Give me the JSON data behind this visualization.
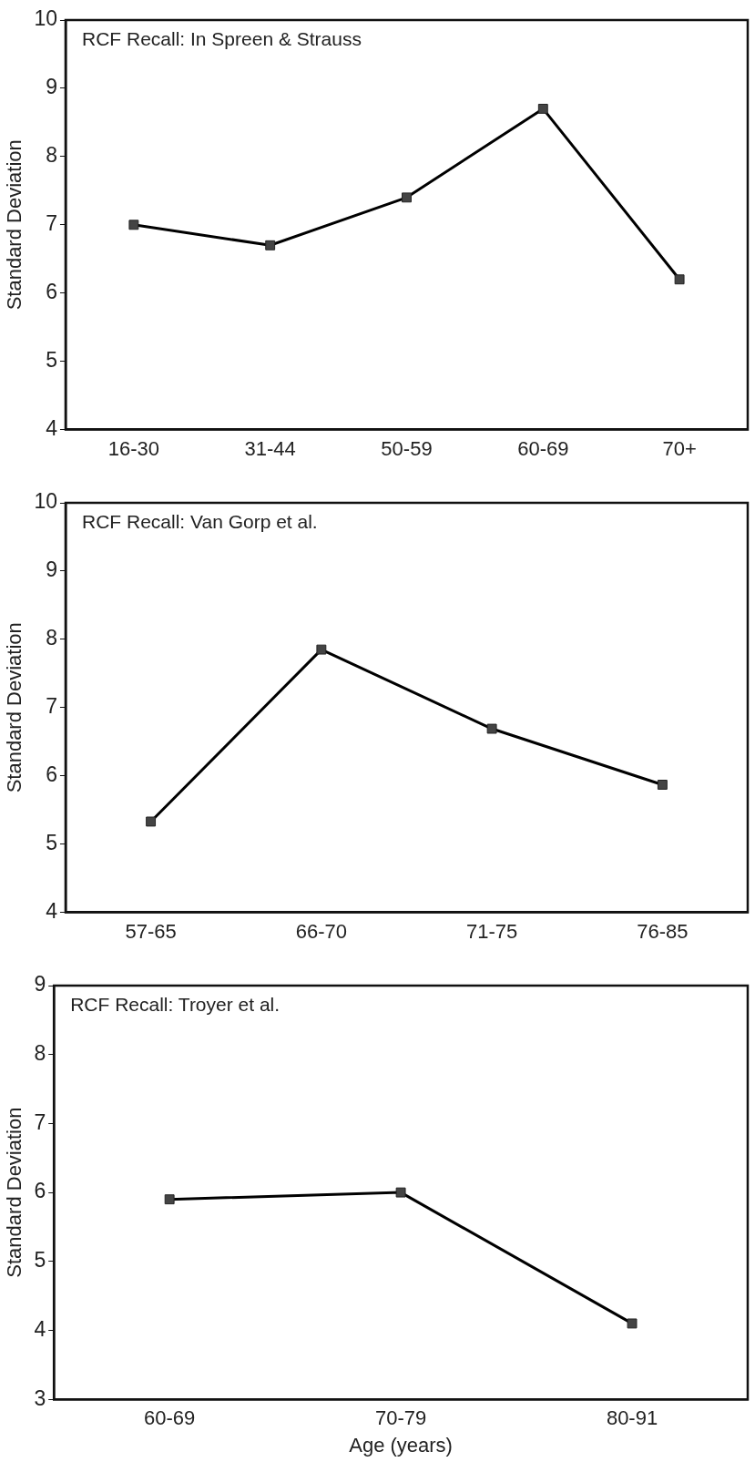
{
  "chart_data": [
    {
      "type": "line",
      "title": "RCF Recall: In Spreen & Strauss",
      "ylabel": "Standard Deviation",
      "categories": [
        "16-30",
        "31-44",
        "50-59",
        "60-69",
        "70+"
      ],
      "series": [
        {
          "color": "#000000",
          "values": [
            7.0,
            6.7,
            7.4,
            8.7,
            6.2
          ]
        }
      ],
      "ylim": [
        4,
        10
      ],
      "yticks": [
        4,
        5,
        6,
        7,
        8,
        9,
        10
      ],
      "grid": false,
      "legend": false,
      "marker": "square",
      "line_style": "solid"
    },
    {
      "type": "line",
      "title": "RCF Recall: Van Gorp et al.",
      "ylabel": "Standard Deviation",
      "categories": [
        "57-65",
        "66-70",
        "71-75",
        "76-85"
      ],
      "series": [
        {
          "color": "#000000",
          "values": [
            5.33,
            7.85,
            6.69,
            5.87
          ]
        }
      ],
      "ylim": [
        4,
        10
      ],
      "yticks": [
        4,
        5,
        6,
        7,
        8,
        9,
        10
      ],
      "grid": false,
      "legend": false,
      "marker": "square",
      "line_style": "solid"
    },
    {
      "type": "line",
      "title": "RCF Recall: Troyer et al.",
      "ylabel": "Standard Deviation",
      "xlabel": "Age (years)",
      "categories": [
        "60-69",
        "70-79",
        "80-91"
      ],
      "series": [
        {
          "color": "#000000",
          "values": [
            5.9,
            6.0,
            4.1
          ]
        }
      ],
      "ylim": [
        3,
        9
      ],
      "yticks": [
        3,
        4,
        5,
        6,
        7,
        8,
        9
      ],
      "grid": false,
      "legend": false,
      "marker": "square",
      "line_style": "solid"
    }
  ]
}
